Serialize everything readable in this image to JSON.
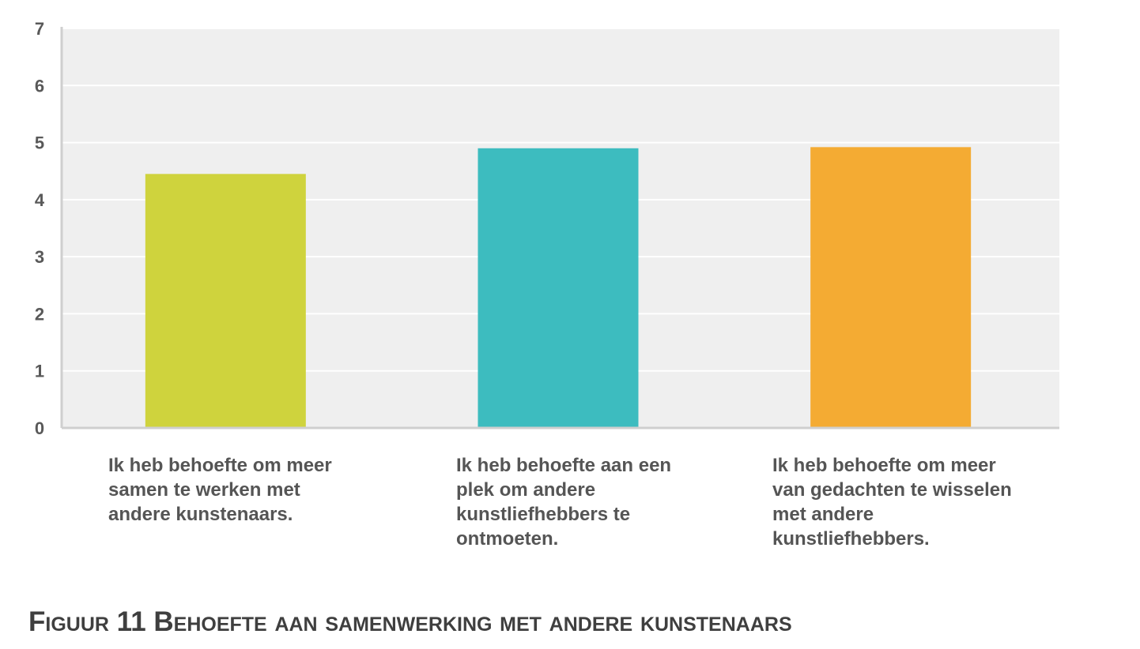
{
  "chart_data": {
    "type": "bar",
    "categories": [
      "Ik heb behoefte om meer samen te werken met andere kunstenaars.",
      "Ik heb behoefte aan een plek om andere kunstliefhebbers te ontmoeten.",
      "Ik heb behoefte om meer van gedachten te wisselen met andere kunstliefhebbers."
    ],
    "values": [
      4.45,
      4.9,
      4.92
    ],
    "colors": [
      "#cfd33d",
      "#3dbcbf",
      "#f4ab33"
    ],
    "ylim": [
      0,
      7
    ],
    "yticks": [
      "0",
      "1",
      "2",
      "3",
      "4",
      "5",
      "6",
      "7"
    ],
    "grid": true,
    "title": "",
    "xlabel": "",
    "ylabel": ""
  },
  "caption": "Figuur 11 Behoefte aan samenwerking met andere kunstenaars"
}
